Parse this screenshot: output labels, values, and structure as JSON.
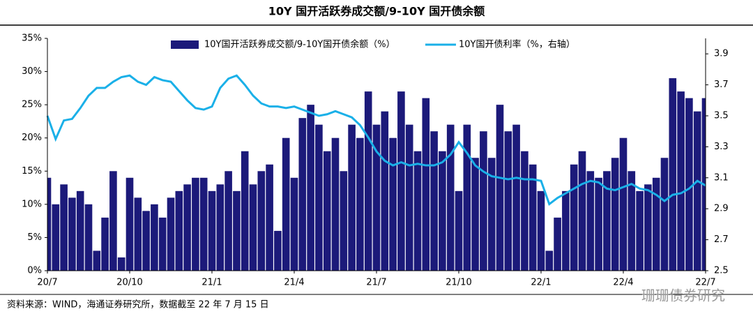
{
  "chart_data": {
    "type": "bar",
    "title": "10Y 国开活跃券成交额/9-10Y 国开债余额",
    "source": "资料来源：WIND，海通证券研究所，数据截至 22 年 7 月 15 日",
    "watermark": "珊珊债券研究",
    "categories": [
      "20/7",
      null,
      null,
      null,
      null,
      null,
      null,
      null,
      null,
      null,
      "20/10",
      null,
      null,
      null,
      null,
      null,
      null,
      null,
      null,
      null,
      "21/1",
      null,
      null,
      null,
      null,
      null,
      null,
      null,
      null,
      null,
      "21/4",
      null,
      null,
      null,
      null,
      null,
      null,
      null,
      null,
      null,
      "21/7",
      null,
      null,
      null,
      null,
      null,
      null,
      null,
      null,
      null,
      "21/10",
      null,
      null,
      null,
      null,
      null,
      null,
      null,
      null,
      null,
      "22/1",
      null,
      null,
      null,
      null,
      null,
      null,
      null,
      null,
      null,
      "22/4",
      null,
      null,
      null,
      null,
      null,
      null,
      null,
      null,
      null,
      "22/7"
    ],
    "series": [
      {
        "name": "10Y国开活跃券成交额/9-10Y国开债余额（%）",
        "type": "bar",
        "color": "#1c1a7a",
        "values": [
          14,
          10,
          13,
          11,
          12,
          10,
          3,
          8,
          15,
          2,
          14,
          11,
          9,
          10,
          8,
          11,
          12,
          13,
          14,
          14,
          12,
          13,
          15,
          12,
          18,
          13,
          15,
          16,
          6,
          20,
          14,
          23,
          25,
          22,
          18,
          20,
          15,
          22,
          20,
          27,
          22,
          24,
          20,
          27,
          22,
          18,
          26,
          21,
          18,
          22,
          12,
          22,
          17,
          21,
          17,
          25,
          21,
          22,
          18,
          16,
          12,
          3,
          8,
          12,
          16,
          18,
          15,
          14,
          15,
          17,
          20,
          15,
          12,
          13,
          14,
          17,
          29,
          27,
          26,
          24,
          26
        ]
      },
      {
        "name": "10Y国开债利率（%，右轴）",
        "type": "line",
        "axis": "y2",
        "color": "#1ab0e8",
        "values": [
          3.5,
          3.35,
          3.47,
          3.48,
          3.55,
          3.63,
          3.68,
          3.68,
          3.72,
          3.75,
          3.76,
          3.72,
          3.7,
          3.75,
          3.73,
          3.72,
          3.66,
          3.6,
          3.55,
          3.54,
          3.56,
          3.68,
          3.74,
          3.76,
          3.7,
          3.63,
          3.58,
          3.56,
          3.56,
          3.55,
          3.56,
          3.54,
          3.52,
          3.5,
          3.51,
          3.53,
          3.51,
          3.49,
          3.44,
          3.36,
          3.27,
          3.21,
          3.18,
          3.2,
          3.18,
          3.19,
          3.18,
          3.18,
          3.2,
          3.25,
          3.33,
          3.26,
          3.18,
          3.14,
          3.11,
          3.1,
          3.09,
          3.1,
          3.09,
          3.09,
          3.08,
          2.93,
          2.97,
          3.0,
          3.03,
          3.06,
          3.08,
          3.07,
          3.03,
          3.02,
          3.04,
          3.06,
          3.03,
          3.02,
          2.99,
          2.95,
          2.99,
          3.0,
          3.03,
          3.08,
          3.05
        ]
      }
    ],
    "ylim": [
      0,
      35
    ],
    "yticks": [
      {
        "value": 0,
        "label": "0%"
      },
      {
        "value": 5,
        "label": "5%"
      },
      {
        "value": 10,
        "label": "10%"
      },
      {
        "value": 15,
        "label": "15%"
      },
      {
        "value": 20,
        "label": "20%"
      },
      {
        "value": 25,
        "label": "25%"
      },
      {
        "value": 30,
        "label": "30%"
      },
      {
        "value": 35,
        "label": "35%"
      }
    ],
    "y2lim": [
      2.5,
      4.0
    ],
    "y2ticks": [
      2.5,
      2.7,
      2.9,
      3.1,
      3.3,
      3.5,
      3.7,
      3.9
    ],
    "legend": "top"
  }
}
